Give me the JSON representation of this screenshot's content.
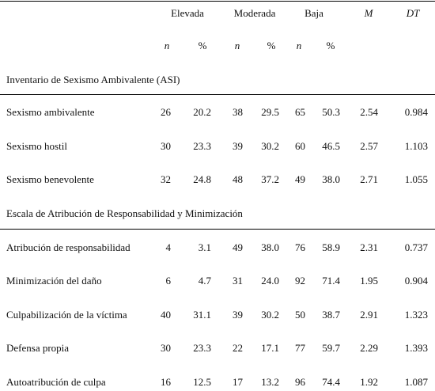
{
  "columns": {
    "groups": [
      "Elevada",
      "Moderada",
      "Baja"
    ],
    "m": "M",
    "dt": "DT",
    "sub": [
      "n",
      "%",
      "n",
      "%",
      "n",
      "%"
    ]
  },
  "sections": [
    {
      "title": "Inventario de Sexismo Ambivalente (ASI)",
      "rows": [
        {
          "label": "Sexismo ambivalente",
          "values": [
            "26",
            "20.2",
            "38",
            "29.5",
            "65",
            "50.3",
            "2.54",
            "0.984"
          ]
        },
        {
          "label": "Sexismo hostil",
          "values": [
            "30",
            "23.3",
            "39",
            "30.2",
            "60",
            "46.5",
            "2.57",
            "1.103"
          ]
        },
        {
          "label": "Sexismo benevolente",
          "values": [
            "32",
            "24.8",
            "48",
            "37.2",
            "49",
            "38.0",
            "2.71",
            "1.055"
          ]
        }
      ]
    },
    {
      "title": "Escala de Atribución de Responsabilidad y Minimización",
      "rows": [
        {
          "label": "Atribución de responsabilidad",
          "values": [
            "4",
            "3.1",
            "49",
            "38.0",
            "76",
            "58.9",
            "2.31",
            "0.737"
          ]
        },
        {
          "label": "Minimización del daño",
          "values": [
            "6",
            "4.7",
            "31",
            "24.0",
            "92",
            "71.4",
            "1.95",
            "0.904"
          ]
        },
        {
          "label": "Culpabilización de la víctima",
          "values": [
            "40",
            "31.1",
            "39",
            "30.2",
            "50",
            "38.7",
            "2.91",
            "1.323"
          ]
        },
        {
          "label": "Defensa propia",
          "values": [
            "30",
            "23.3",
            "22",
            "17.1",
            "77",
            "59.7",
            "2.29",
            "1.393"
          ]
        },
        {
          "label": "Autoatribución de culpa",
          "values": [
            "16",
            "12.5",
            "17",
            "13.2",
            "96",
            "74.4",
            "1.92",
            "1.087"
          ]
        }
      ]
    }
  ]
}
